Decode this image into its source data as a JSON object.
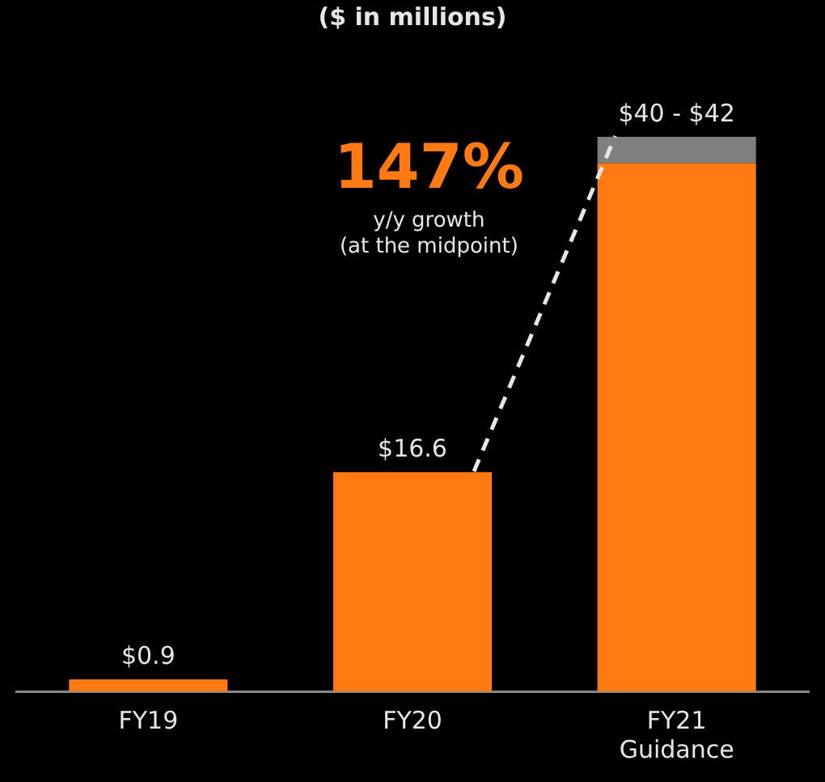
{
  "chart_data": {
    "type": "bar",
    "subtitle": "($ in millions)",
    "categories": [
      "FY19",
      "FY20",
      "FY21 Guidance"
    ],
    "stacked": true,
    "series": [
      {
        "color": "#ff7a12",
        "values": [
          0.9,
          16.6,
          40
        ],
        "value_labels": [
          "$0.9",
          "$16.6",
          null
        ]
      },
      {
        "color": "#7f7f7f",
        "values": [
          null,
          null,
          2
        ]
      }
    ],
    "totals": [
      null,
      null,
      "$40 - $42"
    ],
    "annotations": [
      "147%",
      "y/y growth",
      "(at the midpoint)"
    ],
    "legend": false
  }
}
